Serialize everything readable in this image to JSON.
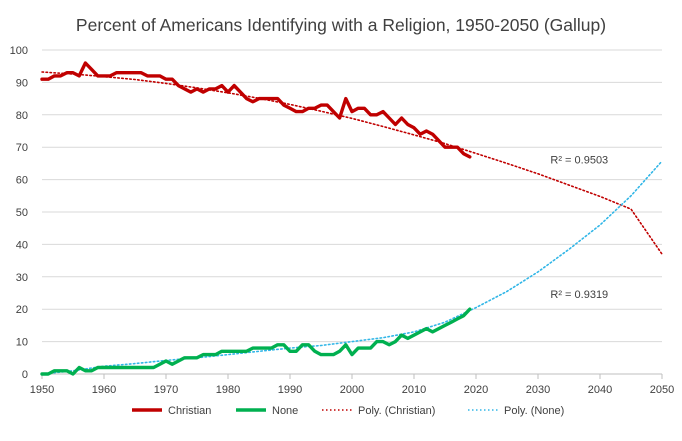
{
  "chart_data": {
    "type": "line",
    "title": "Percent of Americans Identifying with a Religion, 1950-2050 (Gallup)",
    "xlabel": "",
    "ylabel": "",
    "xlim": [
      1950,
      2050
    ],
    "ylim": [
      0,
      100
    ],
    "x_ticks": [
      1950,
      1960,
      1970,
      1980,
      1990,
      2000,
      2010,
      2020,
      2030,
      2040,
      2050
    ],
    "y_ticks": [
      0,
      10,
      20,
      30,
      40,
      50,
      60,
      70,
      80,
      90,
      100
    ],
    "grid": true,
    "legend_position": "bottom",
    "series": [
      {
        "name": "Christian",
        "color": "#c00000",
        "style": "solid",
        "x": [
          1950,
          1951,
          1952,
          1953,
          1954,
          1955,
          1956,
          1957,
          1958,
          1959,
          1960,
          1961,
          1962,
          1963,
          1964,
          1965,
          1966,
          1967,
          1968,
          1969,
          1970,
          1971,
          1972,
          1973,
          1974,
          1975,
          1976,
          1977,
          1978,
          1979,
          1980,
          1981,
          1982,
          1983,
          1984,
          1985,
          1986,
          1987,
          1988,
          1989,
          1990,
          1991,
          1992,
          1993,
          1994,
          1995,
          1996,
          1997,
          1998,
          1999,
          2000,
          2001,
          2002,
          2003,
          2004,
          2005,
          2006,
          2007,
          2008,
          2009,
          2010,
          2011,
          2012,
          2013,
          2014,
          2015,
          2016,
          2017,
          2018,
          2019
        ],
        "y": [
          91,
          91,
          92,
          92,
          93,
          93,
          92,
          96,
          94,
          92,
          92,
          92,
          93,
          93,
          93,
          93,
          93,
          92,
          92,
          92,
          91,
          91,
          89,
          88,
          87,
          88,
          87,
          88,
          88,
          89,
          87,
          89,
          87,
          85,
          84,
          85,
          85,
          85,
          85,
          83,
          82,
          81,
          81,
          82,
          82,
          83,
          83,
          81,
          79,
          85,
          81,
          82,
          82,
          80,
          80,
          81,
          79,
          77,
          79,
          77,
          76,
          74,
          75,
          74,
          72,
          70,
          70,
          70,
          68,
          67
        ]
      },
      {
        "name": "None",
        "color": "#00b050",
        "style": "solid",
        "x": [
          1950,
          1951,
          1952,
          1953,
          1954,
          1955,
          1956,
          1957,
          1958,
          1959,
          1960,
          1961,
          1962,
          1963,
          1964,
          1965,
          1966,
          1967,
          1968,
          1969,
          1970,
          1971,
          1972,
          1973,
          1974,
          1975,
          1976,
          1977,
          1978,
          1979,
          1980,
          1981,
          1982,
          1983,
          1984,
          1985,
          1986,
          1987,
          1988,
          1989,
          1990,
          1991,
          1992,
          1993,
          1994,
          1995,
          1996,
          1997,
          1998,
          1999,
          2000,
          2001,
          2002,
          2003,
          2004,
          2005,
          2006,
          2007,
          2008,
          2009,
          2010,
          2011,
          2012,
          2013,
          2014,
          2015,
          2016,
          2017,
          2018,
          2019
        ],
        "y": [
          0,
          0,
          1,
          1,
          1,
          0,
          2,
          1,
          1,
          2,
          2,
          2,
          2,
          2,
          2,
          2,
          2,
          2,
          2,
          3,
          4,
          3,
          4,
          5,
          5,
          5,
          6,
          6,
          6,
          7,
          7,
          7,
          7,
          7,
          8,
          8,
          8,
          8,
          9,
          9,
          7,
          7,
          9,
          9,
          7,
          6,
          6,
          6,
          7,
          9,
          6,
          8,
          8,
          8,
          10,
          10,
          9,
          10,
          12,
          11,
          12,
          13,
          14,
          13,
          14,
          15,
          16,
          17,
          18,
          20
        ]
      },
      {
        "name": "Poly. (Christian)",
        "color": "#c00000",
        "style": "dotted",
        "x": [
          1950,
          1955,
          1960,
          1965,
          1970,
          1975,
          1980,
          1985,
          1990,
          1995,
          2000,
          2005,
          2010,
          2015,
          2020,
          2025,
          2030,
          2035,
          2040,
          2045,
          2050
        ],
        "y": [
          93.2,
          92.6,
          91.8,
          90.9,
          89.7,
          88.3,
          86.8,
          85.1,
          83.2,
          81.1,
          78.9,
          76.4,
          73.8,
          71.1,
          68.1,
          65.0,
          61.8,
          58.3,
          54.8,
          50.9,
          37.0
        ]
      },
      {
        "name": "Poly. (None)",
        "color": "#31b6e7",
        "style": "dotted",
        "x": [
          1950,
          1955,
          1960,
          1965,
          1970,
          1975,
          1980,
          1985,
          1990,
          1995,
          2000,
          2005,
          2010,
          2015,
          2020,
          2025,
          2030,
          2035,
          2040,
          2045,
          2050
        ],
        "y": [
          0.0,
          1.0,
          2.4,
          3.2,
          4.2,
          5.0,
          6.0,
          7.0,
          8.0,
          8.8,
          10.0,
          11.2,
          13.0,
          16.0,
          20.5,
          25.5,
          31.5,
          38.5,
          46.0,
          55.0,
          65.7
        ]
      }
    ],
    "annotations": [
      {
        "text": "R² = 0.9503",
        "x": 2032,
        "y": 65
      },
      {
        "text": "R² = 0.9319",
        "x": 2032,
        "y": 23.5
      }
    ]
  }
}
